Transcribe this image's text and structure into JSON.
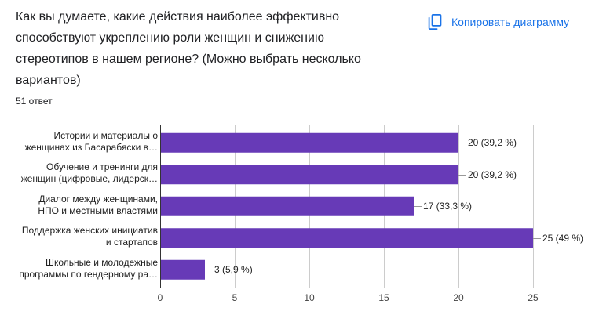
{
  "question": {
    "title": "Как вы думаете, какие действия наиболее эффективно способствуют укреплению роли женщин и снижению стереотипов в нашем регионе? (Можно выбрать несколько вариантов)",
    "response_count": "51 ответ"
  },
  "toolbar": {
    "copy_chart_label": "Копировать диаграмму",
    "copy_icon": "copy-icon"
  },
  "colors": {
    "accent": "#1a73e8",
    "text": "#202124"
  },
  "chart_data": {
    "type": "bar",
    "orientation": "horizontal",
    "categories": [
      "Истории и материалы о\nженщинах из Басарабяски в…",
      "Обучение и тренинги для\nженщин (цифровые, лидерск…",
      "Диалог между женщинами,\nНПО и местными властями",
      "Поддержка женских инициатив\nи стартапов",
      "Школьные и молодежные\nпрограммы по гендерному ра…"
    ],
    "values": [
      20,
      20,
      17,
      25,
      3
    ],
    "data_labels": [
      "20 (39,2 %)",
      "20 (39,2 %)",
      "17 (33,3 %)",
      "25 (49 %)",
      "3 (5,9 %)"
    ],
    "xticks": [
      0,
      5,
      10,
      15,
      20,
      25
    ],
    "xlim": [
      0,
      25
    ],
    "grid": true,
    "bar_color": "#673ab7"
  }
}
